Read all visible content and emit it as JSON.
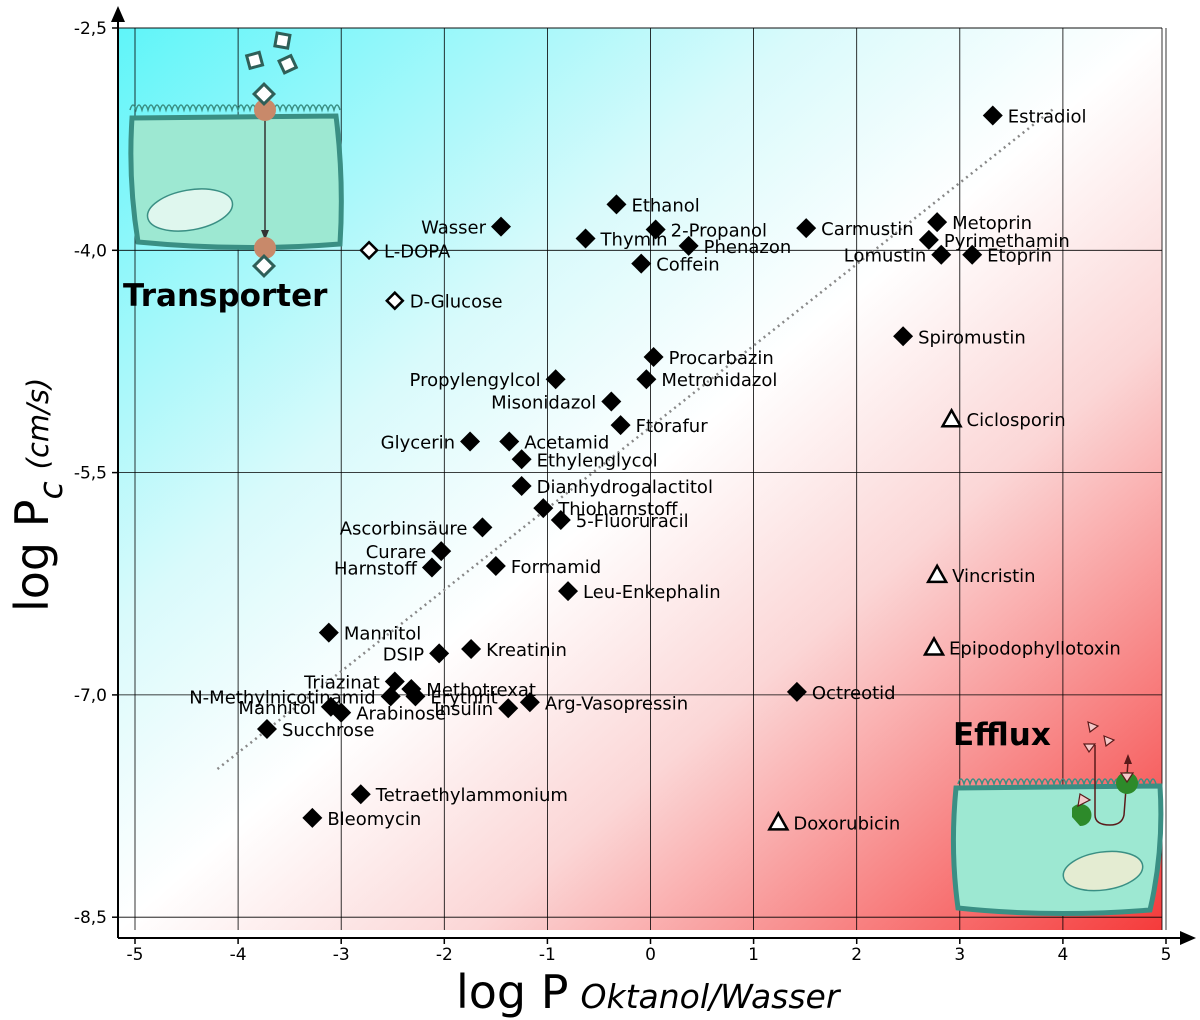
{
  "chart_data": {
    "type": "scatter",
    "title": "",
    "xlabel": {
      "main": "log P",
      "subscript": "Oktanol/Wasser"
    },
    "ylabel": {
      "main": "log P",
      "subscript": "c",
      "unit": "(cm/s)"
    },
    "xlim": [
      -5.15,
      5
    ],
    "ylim": [
      -8.5,
      -2.5
    ],
    "xticks": [
      -5,
      -4,
      -3,
      -2,
      -1,
      0,
      1,
      2,
      3,
      4,
      5
    ],
    "xtick_labels": [
      "-5",
      "-4",
      "-3",
      "-2",
      "-1",
      "0",
      "1",
      "2",
      "3",
      "4",
      "5"
    ],
    "yticks": [
      -2.5,
      -4.0,
      -5.5,
      -7.0,
      -8.5
    ],
    "ytick_labels": [
      "-2,5",
      "-4,0",
      "-5,5",
      "-7,0",
      "-8,5"
    ],
    "grid": true,
    "colors": {
      "transporter_zone": "#5ff5f9",
      "efflux_zone": "#f53b3b",
      "cell": "#9de8d2",
      "cell_border": "#3a8f84",
      "trend_line": "#888888"
    },
    "regions": [
      {
        "name": "Transporter",
        "corner": "top-left"
      },
      {
        "name": "Efflux",
        "corner": "bottom-right"
      }
    ],
    "trend_line": {
      "style": "dotted",
      "from": [
        -4.2,
        -7.5
      ],
      "to": [
        3.9,
        -3.05
      ]
    },
    "series": [
      {
        "marker": "filled-diamond",
        "points": [
          {
            "label": "Estradiol",
            "x": 3.32,
            "y": -3.09,
            "pos": "right"
          },
          {
            "label": "Wasser",
            "x": -1.45,
            "y": -3.84,
            "pos": "left"
          },
          {
            "label": "Ethanol",
            "x": -0.33,
            "y": -3.69,
            "pos": "right"
          },
          {
            "label": "2-Propanol",
            "x": 0.05,
            "y": -3.86,
            "pos": "right"
          },
          {
            "label": "Thymin",
            "x": -0.63,
            "y": -3.92,
            "pos": "right"
          },
          {
            "label": "Phenazon",
            "x": 0.37,
            "y": -3.97,
            "pos": "right"
          },
          {
            "label": "Coffein",
            "x": -0.09,
            "y": -4.09,
            "pos": "right"
          },
          {
            "label": "Carmustin",
            "x": 1.51,
            "y": -3.85,
            "pos": "right"
          },
          {
            "label": "Metoprin",
            "x": 2.78,
            "y": -3.81,
            "pos": "right"
          },
          {
            "label": "Pyrimethamin",
            "x": 2.7,
            "y": -3.93,
            "pos": "right"
          },
          {
            "label": "Lomustin",
            "x": 2.82,
            "y": -4.03,
            "pos": "left"
          },
          {
            "label": "Etoprin",
            "x": 3.12,
            "y": -4.03,
            "pos": "right"
          },
          {
            "label": "Spiromustin",
            "x": 2.45,
            "y": -4.58,
            "pos": "right"
          },
          {
            "label": "Procarbazin",
            "x": 0.03,
            "y": -4.72,
            "pos": "right"
          },
          {
            "label": "Propylengylcol",
            "x": -0.92,
            "y": -4.87,
            "pos": "left"
          },
          {
            "label": "Metronidazol",
            "x": -0.04,
            "y": -4.87,
            "pos": "right"
          },
          {
            "label": "Misonidazol",
            "x": -0.38,
            "y": -5.02,
            "pos": "left"
          },
          {
            "label": "Ftorafur",
            "x": -0.29,
            "y": -5.18,
            "pos": "right"
          },
          {
            "label": "Glycerin",
            "x": -1.75,
            "y": -5.29,
            "pos": "left"
          },
          {
            "label": "Acetamid",
            "x": -1.37,
            "y": -5.29,
            "pos": "right"
          },
          {
            "label": "Ethylenglycol",
            "x": -1.25,
            "y": -5.41,
            "pos": "right"
          },
          {
            "label": "Dianhydrogalactitol",
            "x": -1.25,
            "y": -5.59,
            "pos": "right"
          },
          {
            "label": "Thioharnstoff",
            "x": -1.04,
            "y": -5.74,
            "pos": "right"
          },
          {
            "label": "5-Fluoruracil",
            "x": -0.87,
            "y": -5.82,
            "pos": "right"
          },
          {
            "label": "Ascorbinsäure",
            "x": -1.63,
            "y": -5.87,
            "pos": "left"
          },
          {
            "label": "Curare",
            "x": -2.03,
            "y": -6.03,
            "pos": "left"
          },
          {
            "label": "Formamid",
            "x": -1.5,
            "y": -6.13,
            "pos": "right"
          },
          {
            "label": "Harnstoff",
            "x": -2.12,
            "y": -6.14,
            "pos": "left"
          },
          {
            "label": "Leu-Enkephalin",
            "x": -0.8,
            "y": -6.3,
            "pos": "right"
          },
          {
            "label": "Mannitol",
            "x": -3.12,
            "y": -6.58,
            "pos": "right"
          },
          {
            "label": "Kreatinin",
            "x": -1.74,
            "y": -6.69,
            "pos": "right"
          },
          {
            "label": "DSIP",
            "x": -2.05,
            "y": -6.72,
            "pos": "left"
          },
          {
            "label": "Triazinat",
            "x": -2.48,
            "y": -6.91,
            "pos": "left"
          },
          {
            "label": "Methotrexat",
            "x": -2.32,
            "y": -6.96,
            "pos": "right"
          },
          {
            "label": "Mannitol",
            "x": -3.1,
            "y": -7.08,
            "pos": "left"
          },
          {
            "label": "Insulin",
            "x": -1.38,
            "y": -7.09,
            "pos": "left"
          },
          {
            "label": "Arg-Vasopressin",
            "x": -1.17,
            "y": -7.05,
            "pos": "right"
          },
          {
            "label": "N-Methylnicotinamid",
            "x": -2.52,
            "y": -7.01,
            "pos": "left"
          },
          {
            "label": "Erythrit",
            "x": -2.28,
            "y": -7.01,
            "pos": "right"
          },
          {
            "label": "Arabinose",
            "x": -3.0,
            "y": -7.12,
            "pos": "right"
          },
          {
            "label": "Succhrose",
            "x": -3.72,
            "y": -7.23,
            "pos": "right"
          },
          {
            "label": "Octreotid",
            "x": 1.42,
            "y": -6.98,
            "pos": "right"
          },
          {
            "label": "Tetraethylammonium",
            "x": -2.81,
            "y": -7.67,
            "pos": "right"
          },
          {
            "label": "Bleomycin",
            "x": -3.28,
            "y": -7.83,
            "pos": "right"
          }
        ]
      },
      {
        "marker": "open-diamond",
        "points": [
          {
            "label": "L-DOPA",
            "x": -2.73,
            "y": -4.0,
            "pos": "right"
          },
          {
            "label": "D-Glucose",
            "x": -2.48,
            "y": -4.34,
            "pos": "right"
          }
        ]
      },
      {
        "marker": "open-triangle",
        "points": [
          {
            "label": "Ciclosporin",
            "x": 2.92,
            "y": -5.14,
            "pos": "right"
          },
          {
            "label": "Vincristin",
            "x": 2.78,
            "y": -6.19,
            "pos": "right"
          },
          {
            "label": "Epipodophyllotoxin",
            "x": 2.75,
            "y": -6.68,
            "pos": "right"
          },
          {
            "label": "Doxorubicin",
            "x": 1.24,
            "y": -7.86,
            "pos": "right"
          }
        ]
      }
    ]
  }
}
